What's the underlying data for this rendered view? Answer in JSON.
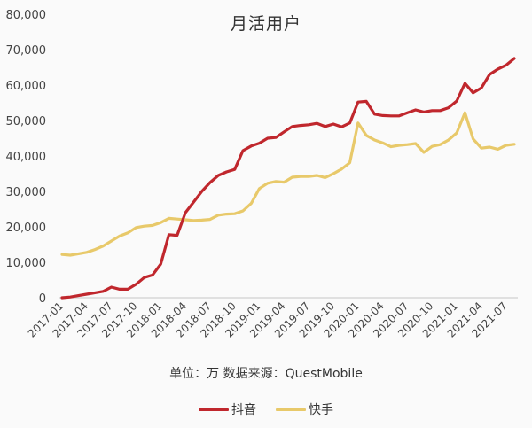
{
  "chart_data": {
    "type": "line",
    "title": "月活用户",
    "subtitle": "单位：万  数据来源：QuestMobile",
    "xlabel": "",
    "ylabel": "",
    "ylim": [
      0,
      80000
    ],
    "yticks": [
      "0",
      "10,000",
      "20,000",
      "30,000",
      "40,000",
      "50,000",
      "60,000",
      "70,000",
      "80,000"
    ],
    "grid": false,
    "legend_position": "bottom",
    "x_tick_labels": [
      "2017-01",
      "2017-04",
      "2017-07",
      "2017-10",
      "2018-01",
      "2018-04",
      "2018-07",
      "2018-10",
      "2019-01",
      "2019-04",
      "2019-07",
      "2019-10",
      "2020-01",
      "2020-04",
      "2020-07",
      "2020-10",
      "2021-01",
      "2021-04",
      "2021-07"
    ],
    "x": [
      "2017-01",
      "2017-02",
      "2017-03",
      "2017-04",
      "2017-05",
      "2017-06",
      "2017-07",
      "2017-08",
      "2017-09",
      "2017-10",
      "2017-11",
      "2017-12",
      "2018-01",
      "2018-02",
      "2018-03",
      "2018-04",
      "2018-05",
      "2018-06",
      "2018-07",
      "2018-08",
      "2018-09",
      "2018-10",
      "2018-11",
      "2018-12",
      "2019-01",
      "2019-02",
      "2019-03",
      "2019-04",
      "2019-05",
      "2019-06",
      "2019-07",
      "2019-08",
      "2019-09",
      "2019-10",
      "2019-11",
      "2019-12",
      "2020-01",
      "2020-02",
      "2020-03",
      "2020-04",
      "2020-05",
      "2020-06",
      "2020-07",
      "2020-08",
      "2020-09",
      "2020-10",
      "2020-11",
      "2020-12",
      "2021-01",
      "2021-02",
      "2021-03",
      "2021-04",
      "2021-05",
      "2021-06",
      "2021-07",
      "2021-08"
    ],
    "series": [
      {
        "name": "抖音",
        "color": "#C0272D",
        "values": [
          0,
          200,
          600,
          1000,
          1400,
          1800,
          3000,
          2400,
          2400,
          3800,
          5700,
          6400,
          9500,
          17800,
          17600,
          24000,
          27000,
          30000,
          32500,
          34500,
          35500,
          36200,
          41500,
          42800,
          43600,
          45000,
          45200,
          46800,
          48300,
          48600,
          48800,
          49200,
          48300,
          49000,
          48200,
          49300,
          55200,
          55400,
          51800,
          51400,
          51300,
          51300,
          52200,
          53000,
          52400,
          52800,
          52800,
          53600,
          55500,
          60500,
          57800,
          59200,
          63000,
          64500,
          65600,
          67500
        ]
      },
      {
        "name": "快手",
        "color": "#E8C96A",
        "values": [
          12200,
          12000,
          12400,
          12800,
          13600,
          14600,
          16000,
          17400,
          18300,
          19800,
          20200,
          20400,
          21200,
          22400,
          22200,
          22000,
          21800,
          21900,
          22100,
          23300,
          23600,
          23700,
          24500,
          26600,
          30800,
          32300,
          32800,
          32600,
          34000,
          34200,
          34200,
          34500,
          33900,
          35000,
          36300,
          38100,
          49300,
          45800,
          44500,
          43700,
          42600,
          43000,
          43200,
          43500,
          41000,
          42700,
          43200,
          44500,
          46500,
          52200,
          44800,
          42200,
          42500,
          41900,
          43000,
          43300
        ]
      }
    ]
  },
  "subtitle": "单位：万  数据来源：QuestMobile",
  "legend": [
    {
      "label": "抖音",
      "color": "#C0272D"
    },
    {
      "label": "快手",
      "color": "#E8C96A"
    }
  ]
}
